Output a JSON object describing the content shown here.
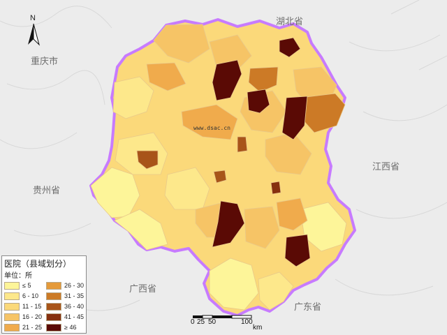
{
  "map": {
    "title": "医院（县域划分）",
    "unit": "单位：所",
    "watermark": "www.dsac.cn",
    "north_label": "N",
    "scale": {
      "ticks": [
        "0",
        "25",
        "50",
        "100"
      ],
      "unit": "km"
    },
    "neighbors": {
      "chongqing": "重庆市",
      "hubei": "湖北省",
      "jiangxi": "江西省",
      "guizhou": "贵州省",
      "guangxi": "广西省",
      "guangdong": "广东省"
    },
    "legend": [
      {
        "label": "≤ 5",
        "color": "#fdf599"
      },
      {
        "label": "6 - 10",
        "color": "#fde88b"
      },
      {
        "label": "11 - 15",
        "color": "#fbd97a"
      },
      {
        "label": "16 - 20",
        "color": "#f6c466"
      },
      {
        "label": "21 - 25",
        "color": "#f0ab4c"
      },
      {
        "label": "26 - 30",
        "color": "#e59a3a"
      },
      {
        "label": "31 - 35",
        "color": "#cc7a26"
      },
      {
        "label": "36 - 40",
        "color": "#a85419"
      },
      {
        "label": "41 - 45",
        "color": "#86300f"
      },
      {
        "label": "≥ 46",
        "color": "#5a0a05"
      }
    ],
    "colors": {
      "province_outline": "#c77bff",
      "background": "#ececec",
      "county_border": "#e8c98a"
    }
  }
}
